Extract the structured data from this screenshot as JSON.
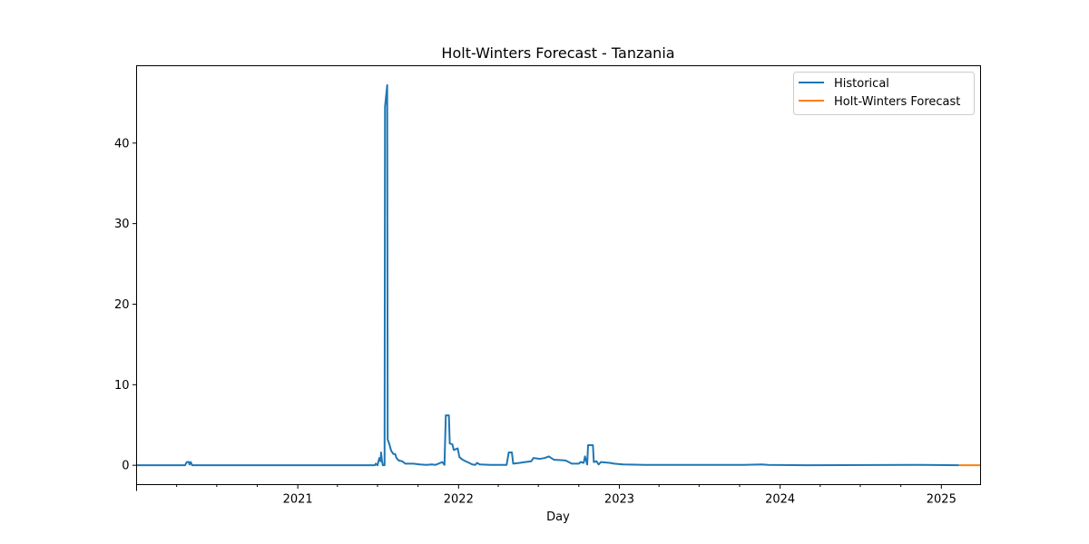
{
  "chart_data": {
    "type": "line",
    "title": "Holt-Winters Forecast - Tanzania",
    "xlabel": "Day",
    "ylabel": "",
    "xlim": [
      "2020-01-01",
      "2025-03-31"
    ],
    "ylim": [
      -2.4,
      49.6
    ],
    "x_ticks": [
      {
        "date": "2021-01-01",
        "label": "2021"
      },
      {
        "date": "2022-01-01",
        "label": "2022"
      },
      {
        "date": "2023-01-01",
        "label": "2023"
      },
      {
        "date": "2024-01-01",
        "label": "2024"
      },
      {
        "date": "2025-01-01",
        "label": "2025"
      }
    ],
    "y_ticks": [
      0,
      10,
      20,
      30,
      40
    ],
    "grid": false,
    "legend_position": "top-right",
    "colors": {
      "historical": "#1f77b4",
      "forecast": "#ff7f0e"
    },
    "series": [
      {
        "name": "Historical",
        "points": [
          [
            "2020-01-01",
            0.0
          ],
          [
            "2020-04-20",
            0.0
          ],
          [
            "2020-04-24",
            0.4
          ],
          [
            "2020-04-29",
            0.4
          ],
          [
            "2020-04-30",
            0.1
          ],
          [
            "2020-05-03",
            0.4
          ],
          [
            "2020-05-06",
            0.0
          ],
          [
            "2021-06-25",
            0.0
          ],
          [
            "2021-06-27",
            0.2
          ],
          [
            "2021-07-01",
            0.0
          ],
          [
            "2021-07-05",
            0.9
          ],
          [
            "2021-07-08",
            0.5
          ],
          [
            "2021-07-09",
            1.6
          ],
          [
            "2021-07-11",
            0.6
          ],
          [
            "2021-07-13",
            0.0
          ],
          [
            "2021-07-17",
            0.0
          ],
          [
            "2021-07-18",
            44.5
          ],
          [
            "2021-07-23",
            47.2
          ],
          [
            "2021-07-24",
            3.2
          ],
          [
            "2021-07-28",
            2.6
          ],
          [
            "2021-08-01",
            1.8
          ],
          [
            "2021-08-06",
            1.4
          ],
          [
            "2021-08-10",
            1.4
          ],
          [
            "2021-08-13",
            0.9
          ],
          [
            "2021-08-18",
            0.6
          ],
          [
            "2021-08-26",
            0.5
          ],
          [
            "2021-09-02",
            0.2
          ],
          [
            "2021-09-20",
            0.2
          ],
          [
            "2021-10-05",
            0.1
          ],
          [
            "2021-10-20",
            0.05
          ],
          [
            "2021-11-01",
            0.1
          ],
          [
            "2021-11-10",
            0.05
          ],
          [
            "2021-11-25",
            0.4
          ],
          [
            "2021-11-30",
            0.05
          ],
          [
            "2021-12-03",
            6.2
          ],
          [
            "2021-12-10",
            6.2
          ],
          [
            "2021-12-12",
            2.7
          ],
          [
            "2021-12-18",
            2.6
          ],
          [
            "2021-12-21",
            1.9
          ],
          [
            "2021-12-30",
            2.1
          ],
          [
            "2022-01-03",
            1.0
          ],
          [
            "2022-01-10",
            0.7
          ],
          [
            "2022-01-17",
            0.5
          ],
          [
            "2022-01-25",
            0.3
          ],
          [
            "2022-02-01",
            0.1
          ],
          [
            "2022-02-08",
            0.05
          ],
          [
            "2022-02-12",
            0.3
          ],
          [
            "2022-02-18",
            0.1
          ],
          [
            "2022-03-15",
            0.05
          ],
          [
            "2022-04-20",
            0.05
          ],
          [
            "2022-04-25",
            1.6
          ],
          [
            "2022-05-02",
            1.6
          ],
          [
            "2022-05-05",
            0.2
          ],
          [
            "2022-05-20",
            0.3
          ],
          [
            "2022-06-01",
            0.4
          ],
          [
            "2022-06-15",
            0.5
          ],
          [
            "2022-06-20",
            0.9
          ],
          [
            "2022-07-05",
            0.8
          ],
          [
            "2022-07-15",
            0.9
          ],
          [
            "2022-07-25",
            1.1
          ],
          [
            "2022-08-05",
            0.7
          ],
          [
            "2022-09-01",
            0.6
          ],
          [
            "2022-09-15",
            0.2
          ],
          [
            "2022-10-01",
            0.2
          ],
          [
            "2022-10-05",
            0.4
          ],
          [
            "2022-10-12",
            0.3
          ],
          [
            "2022-10-15",
            1.1
          ],
          [
            "2022-10-20",
            0.1
          ],
          [
            "2022-10-22",
            2.5
          ],
          [
            "2022-11-02",
            2.5
          ],
          [
            "2022-11-04",
            0.4
          ],
          [
            "2022-11-10",
            0.5
          ],
          [
            "2022-11-15",
            0.1
          ],
          [
            "2022-11-20",
            0.4
          ],
          [
            "2022-12-10",
            0.3
          ],
          [
            "2022-12-20",
            0.2
          ],
          [
            "2023-01-10",
            0.1
          ],
          [
            "2023-03-01",
            0.05
          ],
          [
            "2023-06-01",
            0.05
          ],
          [
            "2023-10-10",
            0.05
          ],
          [
            "2023-11-20",
            0.1
          ],
          [
            "2023-12-05",
            0.05
          ],
          [
            "2024-03-01",
            0.0
          ],
          [
            "2024-10-20",
            0.05
          ],
          [
            "2024-11-20",
            0.05
          ],
          [
            "2025-02-10",
            0.0
          ]
        ]
      },
      {
        "name": "Holt-Winters Forecast",
        "points": [
          [
            "2025-02-10",
            0.0
          ],
          [
            "2025-03-31",
            0.0
          ]
        ]
      }
    ]
  }
}
